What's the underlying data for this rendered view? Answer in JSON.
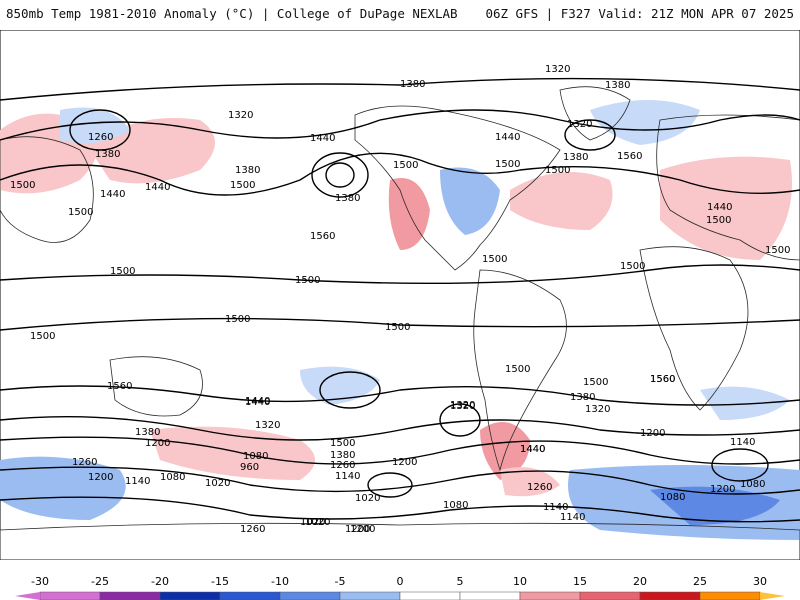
{
  "header": {
    "left_title": "850mb Temp 1981-2010 Anomaly (°C) | College of DuPage NEXLAB",
    "right_title": "06Z GFS | F327 Valid: 21Z MON APR 07 2025"
  },
  "colors": {
    "warm_light": "#f9c6c9",
    "warm_mid": "#f29aa1",
    "warm_strong": "#e6636f",
    "cool_light": "#c7daf7",
    "cool_mid": "#9bbcf0",
    "cool_strong": "#5d88e3",
    "contour": "#000000",
    "coast": "#2a2a2a"
  },
  "map": {
    "contour_labels": [
      "1320",
      "1380",
      "1260",
      "1320",
      "1380",
      "1440",
      "1440",
      "1500",
      "1500",
      "1500",
      "1380",
      "1440",
      "1380",
      "1500",
      "1560",
      "1440",
      "1500",
      "1500",
      "1320",
      "1380",
      "1560",
      "1380",
      "1440",
      "1500",
      "1500",
      "1500",
      "1500",
      "1500",
      "1500",
      "1500",
      "1500",
      "1560",
      "1500",
      "1440",
      "1320",
      "1380",
      "1200",
      "1260",
      "1200",
      "1140",
      "1080",
      "1080",
      "960",
      "1020",
      "1440",
      "1320",
      "1500",
      "1440",
      "1380",
      "1260",
      "1140",
      "1200",
      "1020",
      "1320",
      "1440",
      "1500",
      "1380",
      "1320",
      "1260",
      "1200",
      "1140",
      "1080",
      "1020",
      "1080",
      "1140",
      "1200",
      "1560",
      "1140",
      "1080",
      "1200",
      "1020",
      "1260",
      "1200",
      "1500",
      "1560"
    ]
  },
  "colorbar": {
    "ticks": [
      "-30",
      "-25",
      "-20",
      "-15",
      "-10",
      "-5",
      "0",
      "5",
      "10",
      "15",
      "20",
      "25",
      "30"
    ],
    "colors": [
      "#d66fd4",
      "#8c2aa6",
      "#0c2ea8",
      "#2a57d2",
      "#5d88e3",
      "#9bbcf0",
      "#ffffff",
      "#ffffff",
      "#f29aa1",
      "#e6636f",
      "#c9161f",
      "#ff8c00",
      "#ffc03a"
    ]
  }
}
